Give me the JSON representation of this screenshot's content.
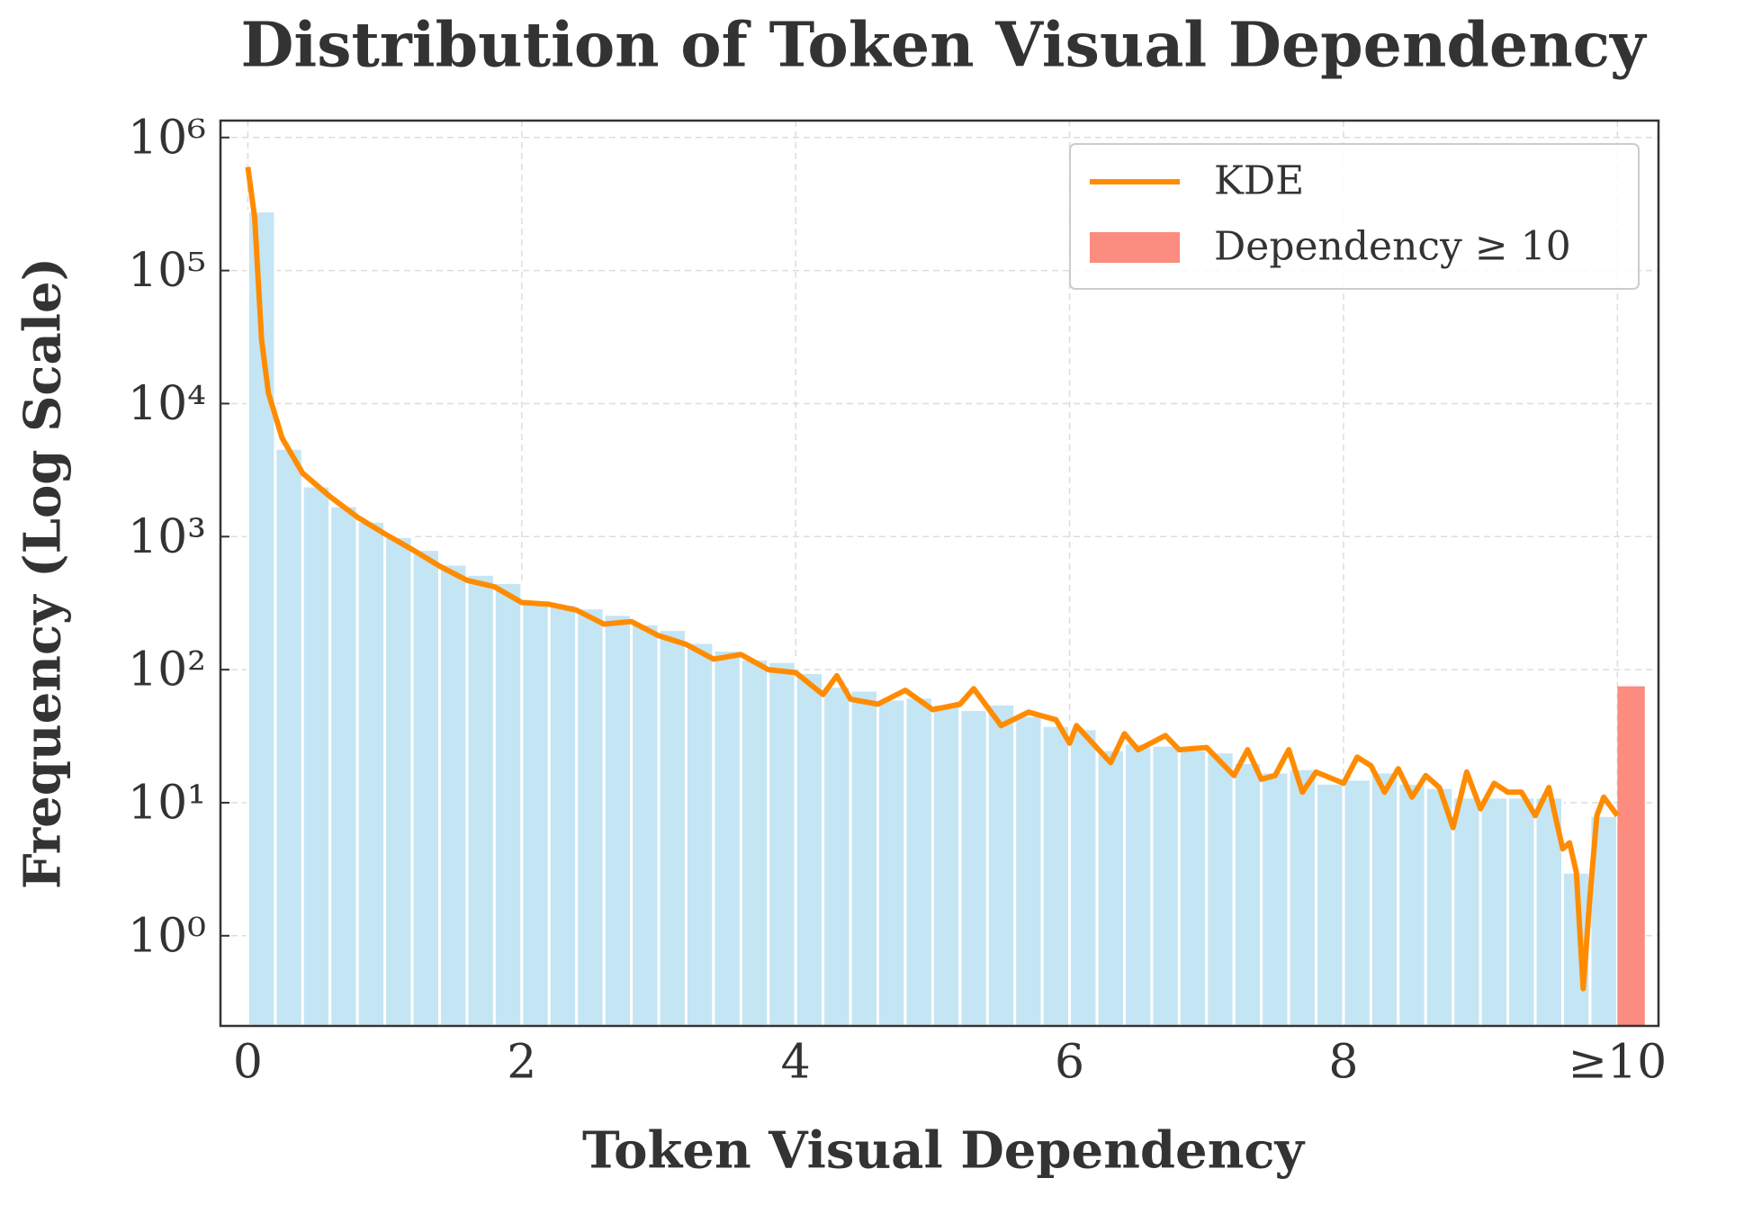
{
  "chart_data": {
    "type": "histogram",
    "title": "Distribution of Token Visual Dependency",
    "xlabel": "Token Visual Dependency",
    "ylabel": "Frequency (Log Scale)",
    "bins": [
      0,
      0.2,
      0.4,
      0.6,
      0.8,
      1.0,
      1.2,
      1.4,
      1.6,
      1.8,
      2.0,
      2.2,
      2.4,
      2.6,
      2.8,
      3.0,
      3.2,
      3.4,
      3.6,
      3.8,
      4.0,
      4.2,
      4.4,
      4.6,
      4.8,
      5.0,
      5.2,
      5.4,
      5.6,
      5.8,
      6.0,
      6.2,
      6.4,
      6.6,
      6.8,
      7.0,
      7.2,
      7.4,
      7.6,
      7.8,
      8.0,
      8.2,
      8.4,
      8.6,
      8.8,
      9.0,
      9.2,
      9.4,
      9.6,
      9.8,
      10.0
    ],
    "counts": [
      280000,
      4600,
      2400,
      1700,
      1300,
      1000,
      800,
      620,
      520,
      450,
      330,
      310,
      290,
      260,
      220,
      200,
      160,
      140,
      120,
      115,
      95,
      75,
      70,
      60,
      62,
      55,
      50,
      55,
      45,
      38,
      36,
      25,
      28,
      27,
      25,
      24,
      20,
      17,
      18,
      14,
      15,
      17,
      14,
      13,
      11,
      11,
      11,
      11,
      3,
      8
    ],
    "color": "#c4e5f4",
    "overflow": {
      "name": "Dependency ≥ 10",
      "bins": [
        10.0,
        10.2
      ],
      "value": 75,
      "color": "#fa8c80"
    },
    "kde": {
      "name": "KDE",
      "color": "#ff8c00",
      "x": [
        0,
        0.05,
        0.1,
        0.15,
        0.25,
        0.4,
        0.6,
        0.8,
        1.0,
        1.2,
        1.4,
        1.6,
        1.8,
        2.0,
        2.2,
        2.4,
        2.6,
        2.8,
        3.0,
        3.2,
        3.4,
        3.6,
        3.8,
        4.0,
        4.2,
        4.3,
        4.4,
        4.6,
        4.8,
        5.0,
        5.2,
        5.3,
        5.5,
        5.7,
        5.9,
        6.0,
        6.05,
        6.3,
        6.4,
        6.5,
        6.7,
        6.8,
        7.0,
        7.2,
        7.3,
        7.4,
        7.5,
        7.6,
        7.7,
        7.8,
        8.0,
        8.1,
        8.2,
        8.3,
        8.4,
        8.5,
        8.6,
        8.7,
        8.8,
        8.9,
        9.0,
        9.1,
        9.2,
        9.3,
        9.4,
        9.5,
        9.6,
        9.65,
        9.7,
        9.75,
        9.8,
        9.85,
        9.9,
        10.0
      ],
      "y": [
        600000,
        250000,
        30000,
        12000,
        5500,
        3000,
        2000,
        1400,
        1050,
        800,
        600,
        470,
        420,
        320,
        310,
        280,
        220,
        230,
        180,
        155,
        120,
        130,
        100,
        95,
        65,
        90,
        60,
        55,
        70,
        50,
        55,
        72,
        38,
        48,
        42,
        28,
        38,
        20,
        33,
        25,
        32,
        25,
        26,
        16,
        25,
        15,
        16,
        25,
        12,
        17,
        14,
        22,
        19,
        12,
        18,
        11,
        16,
        13,
        6.5,
        17,
        9,
        14,
        12,
        12,
        8,
        13,
        4.5,
        5,
        3,
        0.4,
        2,
        8,
        11,
        8
      ]
    },
    "xlim": [
      -0.2,
      10.3
    ],
    "ylim": [
      0.21,
      1340000
    ],
    "xticks": [
      0,
      2,
      4,
      6,
      8,
      {
        "value": 10,
        "label": "≥10"
      }
    ],
    "yticks": [
      {
        "value": 1,
        "label": "10⁰"
      },
      {
        "value": 10,
        "label": "10¹"
      },
      {
        "value": 100,
        "label": "10²"
      },
      {
        "value": 1000,
        "label": "10³"
      },
      {
        "value": 10000,
        "label": "10⁴"
      },
      {
        "value": 100000,
        "label": "10⁵"
      },
      {
        "value": 1000000,
        "label": "10⁶"
      }
    ],
    "yscale": "log",
    "grid": true,
    "legend": "upper right"
  }
}
